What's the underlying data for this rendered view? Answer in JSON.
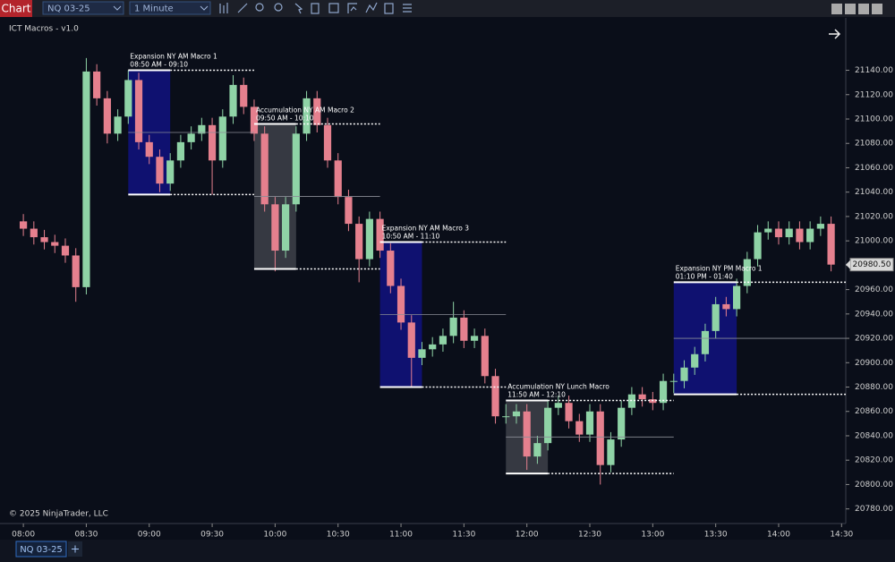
{
  "toolbar": {
    "tab": "Chart",
    "instrument": "NQ 03-25",
    "interval": "1 Minute"
  },
  "footer": {
    "tab": "NQ 03-25"
  },
  "chart_data": {
    "type": "candlestick",
    "indicator": "ICT Macros - v1.0",
    "copyright": "© 2025 NinjaTrader, LLC",
    "up_color": "#8fd3a6",
    "down_color": "#e5808e",
    "xlim": [
      "07:51",
      "14:32"
    ],
    "xticks": [
      "08:00",
      "08:30",
      "09:00",
      "09:30",
      "10:00",
      "10:30",
      "11:00",
      "11:30",
      "12:00",
      "12:30",
      "13:00",
      "13:30",
      "14:00",
      "14:30"
    ],
    "ylim": [
      20768,
      21183
    ],
    "yticks": [
      {
        "value": 20780,
        "label": "20780.00"
      },
      {
        "value": 20800,
        "label": "20800.00"
      },
      {
        "value": 20820,
        "label": "20820.00"
      },
      {
        "value": 20840,
        "label": "20840.00"
      },
      {
        "value": 20860,
        "label": "20860.00"
      },
      {
        "value": 20880,
        "label": "20880.00"
      },
      {
        "value": 20900,
        "label": "20900.00"
      },
      {
        "value": 20920,
        "label": "20920.00"
      },
      {
        "value": 20940,
        "label": "20940.00"
      },
      {
        "value": 20960,
        "label": "20960.00"
      },
      {
        "value": 20980,
        "label": "20980.00"
      },
      {
        "value": 21000,
        "label": "21000.00"
      },
      {
        "value": 21020,
        "label": "21020.00"
      },
      {
        "value": 21040,
        "label": "21040.00"
      },
      {
        "value": 21060,
        "label": "21060.00"
      },
      {
        "value": 21080,
        "label": "21080.00"
      },
      {
        "value": 21100,
        "label": "21100.00"
      },
      {
        "value": 21120,
        "label": "21120.00"
      },
      {
        "value": 21140,
        "label": "21140.00"
      }
    ],
    "last_price": 20980.5,
    "last_price_label": "20980.50",
    "x": [
      "08:00",
      "08:05",
      "08:10",
      "08:15",
      "08:20",
      "08:25",
      "08:30",
      "08:35",
      "08:40",
      "08:45",
      "08:50",
      "08:55",
      "09:00",
      "09:05",
      "09:10",
      "09:15",
      "09:20",
      "09:25",
      "09:30",
      "09:35",
      "09:40",
      "09:45",
      "09:50",
      "09:55",
      "10:00",
      "10:05",
      "10:10",
      "10:15",
      "10:20",
      "10:25",
      "10:30",
      "10:35",
      "10:40",
      "10:45",
      "10:50",
      "10:55",
      "11:00",
      "11:05",
      "11:10",
      "11:15",
      "11:20",
      "11:25",
      "11:30",
      "11:35",
      "11:40",
      "11:45",
      "11:50",
      "11:55",
      "12:00",
      "12:05",
      "12:10",
      "12:15",
      "12:20",
      "12:25",
      "12:30",
      "12:35",
      "12:40",
      "12:45",
      "12:50",
      "12:55",
      "13:00",
      "13:05",
      "13:10",
      "13:15",
      "13:20",
      "13:25",
      "13:30",
      "13:35",
      "13:40",
      "13:45",
      "13:50",
      "13:55",
      "14:00",
      "14:05",
      "14:10",
      "14:15",
      "14:20",
      "14:25"
    ],
    "open": [
      21016,
      21010,
      21003,
      20999,
      20996,
      20988,
      20962,
      21139,
      21117,
      21088,
      21102,
      21132,
      21081,
      21069,
      21047,
      21066,
      21081,
      21088,
      21095,
      21066,
      21102,
      21128,
      21110,
      21088,
      21030,
      20992,
      21030,
      21088,
      21117,
      21095,
      21066,
      21036,
      21014,
      20985,
      21018,
      20992,
      20963,
      20933,
      20904,
      20911,
      20915,
      20922,
      20937,
      20918,
      20922,
      20889,
      20856,
      20856,
      20860,
      20823,
      20834,
      20863,
      20867,
      20852,
      20841,
      20860,
      20816,
      20837,
      20863,
      20874,
      20870,
      20867,
      20885,
      20885,
      20896,
      20907,
      20926,
      20948,
      20944,
      20963,
      20985,
      21007,
      21010,
      21003,
      21010,
      20999,
      21010,
      21014
    ],
    "high": [
      21022,
      21016,
      21009,
      21005,
      21002,
      20994,
      21150,
      21145,
      21123,
      21108,
      21140,
      21138,
      21087,
      21075,
      21072,
      21087,
      21094,
      21101,
      21101,
      21108,
      21136,
      21134,
      21116,
      21094,
      21036,
      21036,
      21094,
      21123,
      21123,
      21101,
      21072,
      21042,
      21020,
      21024,
      21024,
      20998,
      20969,
      20939,
      20917,
      20921,
      20928,
      20950,
      20943,
      20928,
      20928,
      20895,
      20866,
      20866,
      20866,
      20840,
      20869,
      20873,
      20873,
      20858,
      20866,
      20866,
      20843,
      20869,
      20880,
      20880,
      20876,
      20891,
      20891,
      20902,
      20913,
      20932,
      20954,
      20954,
      20969,
      20991,
      21013,
      21016,
      21016,
      21016,
      21016,
      21016,
      21020,
      21020
    ],
    "low": [
      21004,
      20997,
      20993,
      20990,
      20982,
      20950,
      20956,
      21111,
      21080,
      21082,
      21096,
      21075,
      21063,
      21040,
      21041,
      21060,
      21075,
      21082,
      21038,
      21060,
      21096,
      21104,
      21082,
      21024,
      20975,
      20986,
      21024,
      21082,
      21089,
      21060,
      21030,
      21008,
      20966,
      20979,
      20986,
      20957,
      20927,
      20880,
      20898,
      20905,
      20909,
      20916,
      20912,
      20912,
      20883,
      20850,
      20850,
      20850,
      20812,
      20817,
      20828,
      20857,
      20846,
      20835,
      20835,
      20800,
      20810,
      20831,
      20857,
      20864,
      20861,
      20861,
      20875,
      20879,
      20890,
      20901,
      20920,
      20938,
      20938,
      20957,
      20979,
      21001,
      20997,
      20997,
      20993,
      20993,
      21004,
      20975
    ],
    "close": [
      21010,
      21003,
      20999,
      20996,
      20988,
      20962,
      21139,
      21117,
      21088,
      21102,
      21132,
      21081,
      21069,
      21047,
      21066,
      21081,
      21088,
      21095,
      21066,
      21102,
      21128,
      21110,
      21088,
      21030,
      20992,
      21030,
      21088,
      21117,
      21095,
      21066,
      21036,
      21014,
      20985,
      21018,
      20992,
      20963,
      20933,
      20904,
      20911,
      20915,
      20922,
      20937,
      20918,
      20922,
      20889,
      20856,
      20856,
      20860,
      20823,
      20834,
      20863,
      20867,
      20852,
      20841,
      20860,
      20816,
      20837,
      20863,
      20874,
      20870,
      20867,
      20885,
      20885,
      20896,
      20907,
      20926,
      20948,
      20944,
      20963,
      20985,
      21007,
      21010,
      21003,
      21010,
      20999,
      21010,
      21014,
      20980.5
    ],
    "macros": [
      {
        "name": "Expansion NY AM Macro 1",
        "time": "08:50 AM - 09:10",
        "start": "08:50",
        "end": "09:10",
        "high": 21140,
        "low": 21038,
        "color": "#10127a"
      },
      {
        "name": "Accumulation NY AM Macro 2",
        "time": "09:50 AM - 10:10",
        "start": "09:50",
        "end": "10:10",
        "high": 21096,
        "low": 20977,
        "color": "#3b3e47"
      },
      {
        "name": "Expansion NY AM Macro 3",
        "time": "10:50 AM - 11:10",
        "start": "10:50",
        "end": "11:10",
        "high": 20999,
        "low": 20880,
        "color": "#10127a"
      },
      {
        "name": "Accumulation NY Lunch Macro",
        "time": "11:50 AM - 12:10",
        "start": "11:50",
        "end": "12:10",
        "high": 20869,
        "low": 20809,
        "color": "#3b3e47"
      },
      {
        "name": "Expansion NY PM Macro 1",
        "time": "01:10 PM - 01:40",
        "start": "13:10",
        "end": "13:40",
        "high": 20966,
        "low": 20874,
        "color": "#10127a"
      }
    ]
  }
}
